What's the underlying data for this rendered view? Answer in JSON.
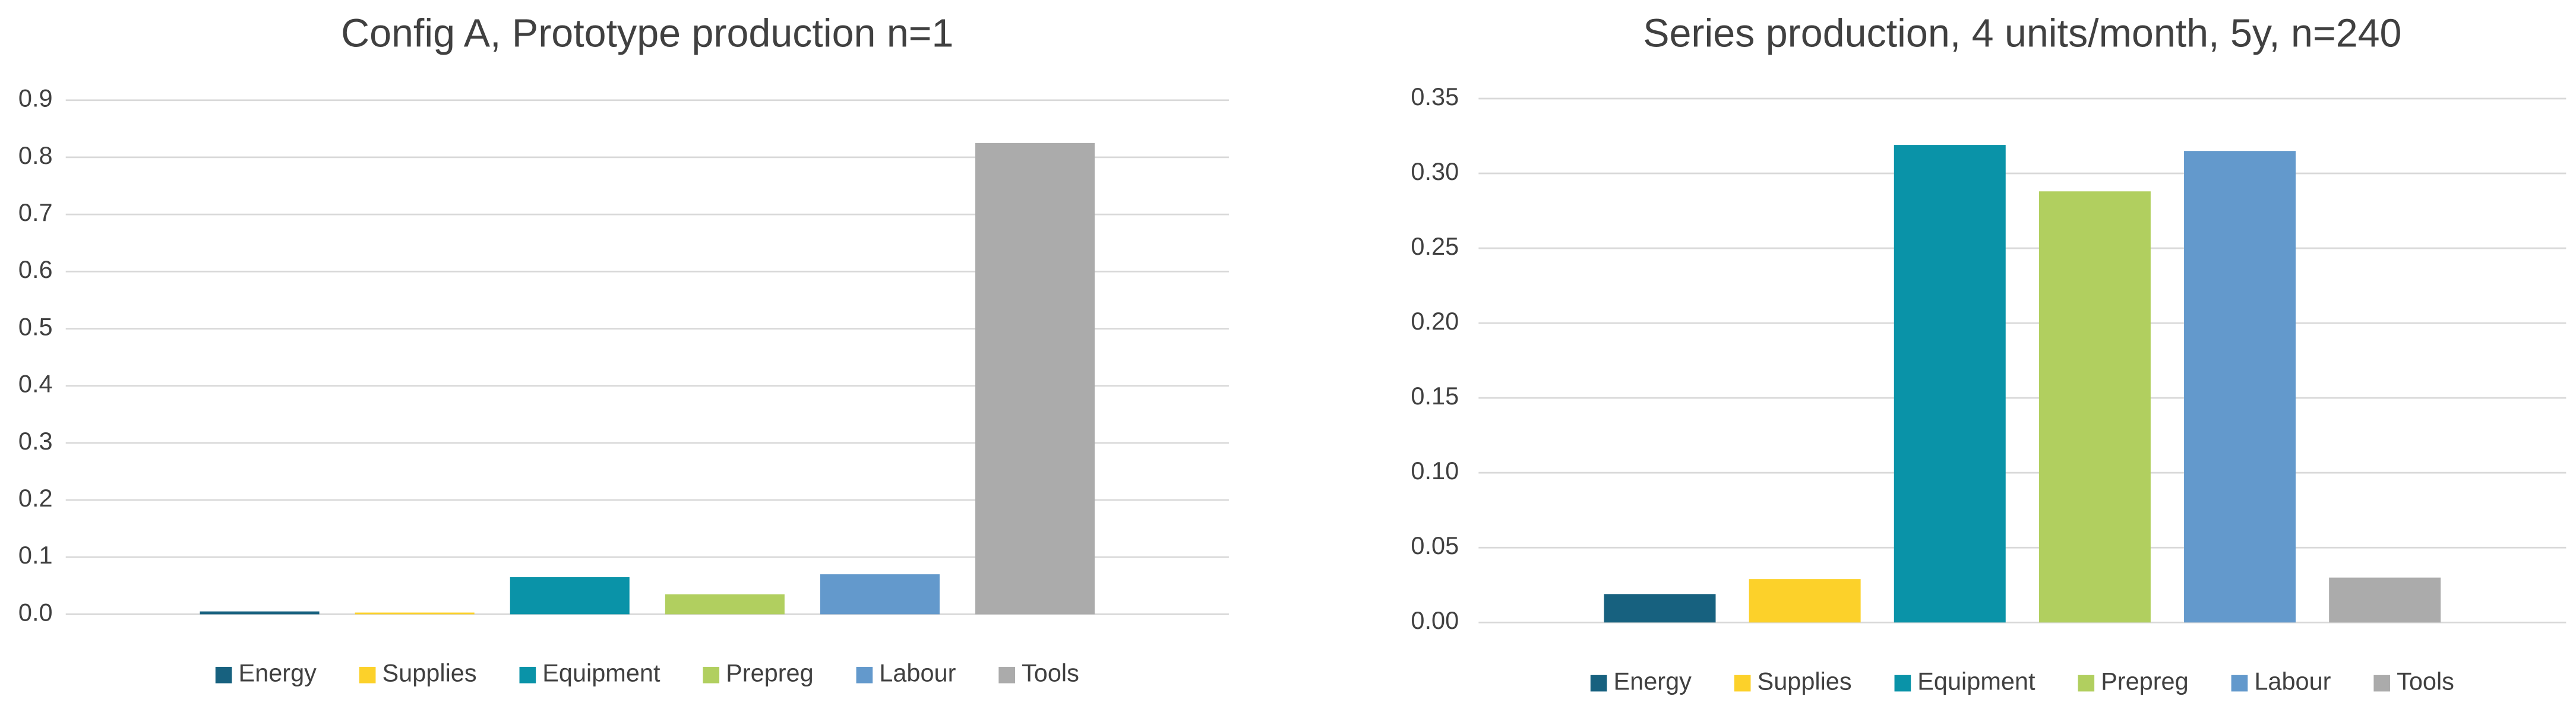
{
  "chart_data": [
    {
      "type": "bar",
      "title": "Config A, Prototype production n=1",
      "categories": [
        null
      ],
      "series": [
        {
          "name": "Energy",
          "color": "#17617f",
          "values": [
            0.005
          ]
        },
        {
          "name": "Supplies",
          "color": "#fcd12a",
          "values": [
            0.003
          ]
        },
        {
          "name": "Equipment",
          "color": "#0a93a8",
          "values": [
            0.065
          ]
        },
        {
          "name": "Prepreg",
          "color": "#b1cf5f",
          "values": [
            0.035
          ]
        },
        {
          "name": "Labour",
          "color": "#6399cc",
          "values": [
            0.07
          ]
        },
        {
          "name": "Tools",
          "color": "#ababab",
          "values": [
            0.825
          ]
        }
      ],
      "ylim": [
        0,
        0.9
      ],
      "yticks": [
        {
          "value": 0,
          "label": "0.0"
        },
        0.1,
        0.2,
        0.3,
        0.4,
        0.5,
        0.6,
        0.7,
        0.8,
        0.9
      ],
      "grid": true,
      "legend": "bottom"
    },
    {
      "type": "bar",
      "title": "Series production, 4 units/month, 5y, n=240",
      "categories": [
        null
      ],
      "series": [
        {
          "name": "Energy",
          "color": "#17617f",
          "values": [
            0.019
          ]
        },
        {
          "name": "Supplies",
          "color": "#fcd12a",
          "values": [
            0.029
          ]
        },
        {
          "name": "Equipment",
          "color": "#0a93a8",
          "values": [
            0.319
          ]
        },
        {
          "name": "Prepreg",
          "color": "#b1cf5f",
          "values": [
            0.288
          ]
        },
        {
          "name": "Labour",
          "color": "#6399cc",
          "values": [
            0.315
          ]
        },
        {
          "name": "Tools",
          "color": "#ababab",
          "values": [
            0.03
          ]
        }
      ],
      "ylim": [
        0,
        0.35
      ],
      "yticks": [
        {
          "value": 0,
          "label": "0.00"
        },
        0.05,
        {
          "value": 0.1,
          "label": "0.10"
        },
        0.15,
        {
          "value": 0.2,
          "label": "0.20"
        },
        0.25,
        {
          "value": 0.3,
          "label": "0.30"
        },
        0.35
      ],
      "grid": true,
      "legend": "bottom"
    }
  ]
}
